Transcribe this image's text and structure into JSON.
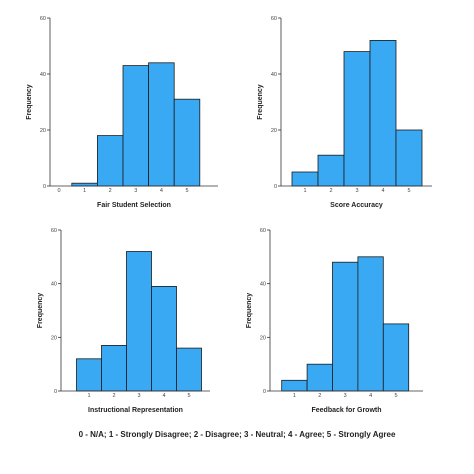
{
  "chart_data": [
    {
      "type": "bar",
      "xlabel": "Fair Student Selection",
      "ylabel": "Frequency",
      "categories": [
        "0",
        "1",
        "2",
        "3",
        "4",
        "5"
      ],
      "values": [
        0,
        1,
        18,
        43,
        44,
        31
      ],
      "ylim": [
        0,
        60
      ],
      "yticks": [
        "0",
        "20",
        "40",
        "60"
      ],
      "bar_color": "#3aa9f4",
      "grid": false
    },
    {
      "type": "bar",
      "xlabel": "Score Accuracy",
      "ylabel": "Frequency",
      "categories": [
        "1",
        "2",
        "3",
        "4",
        "5"
      ],
      "values": [
        5,
        11,
        48,
        52,
        20
      ],
      "ylim": [
        0,
        60
      ],
      "yticks": [
        "0",
        "20",
        "40",
        "60"
      ],
      "bar_color": "#3aa9f4",
      "grid": false
    },
    {
      "type": "bar",
      "xlabel": "Instructional Representation",
      "ylabel": "Frequency",
      "categories": [
        "1",
        "2",
        "3",
        "4",
        "5"
      ],
      "values": [
        12,
        17,
        52,
        39,
        16
      ],
      "ylim": [
        0,
        60
      ],
      "yticks": [
        "0",
        "20",
        "40",
        "60"
      ],
      "bar_color": "#3aa9f4",
      "grid": false
    },
    {
      "type": "bar",
      "xlabel": "Feedback for Growth",
      "ylabel": "Frequency",
      "categories": [
        "1",
        "2",
        "3",
        "4",
        "5"
      ],
      "values": [
        4,
        10,
        48,
        50,
        25
      ],
      "ylim": [
        0,
        60
      ],
      "yticks": [
        "0",
        "20",
        "40",
        "60"
      ],
      "bar_color": "#3aa9f4",
      "grid": false
    }
  ],
  "scale_note": "0 - N/A; 1 - Strongly Disagree; 2 - Disagree; 3 - Neutral; 4 - Agree; 5 - Strongly Agree"
}
